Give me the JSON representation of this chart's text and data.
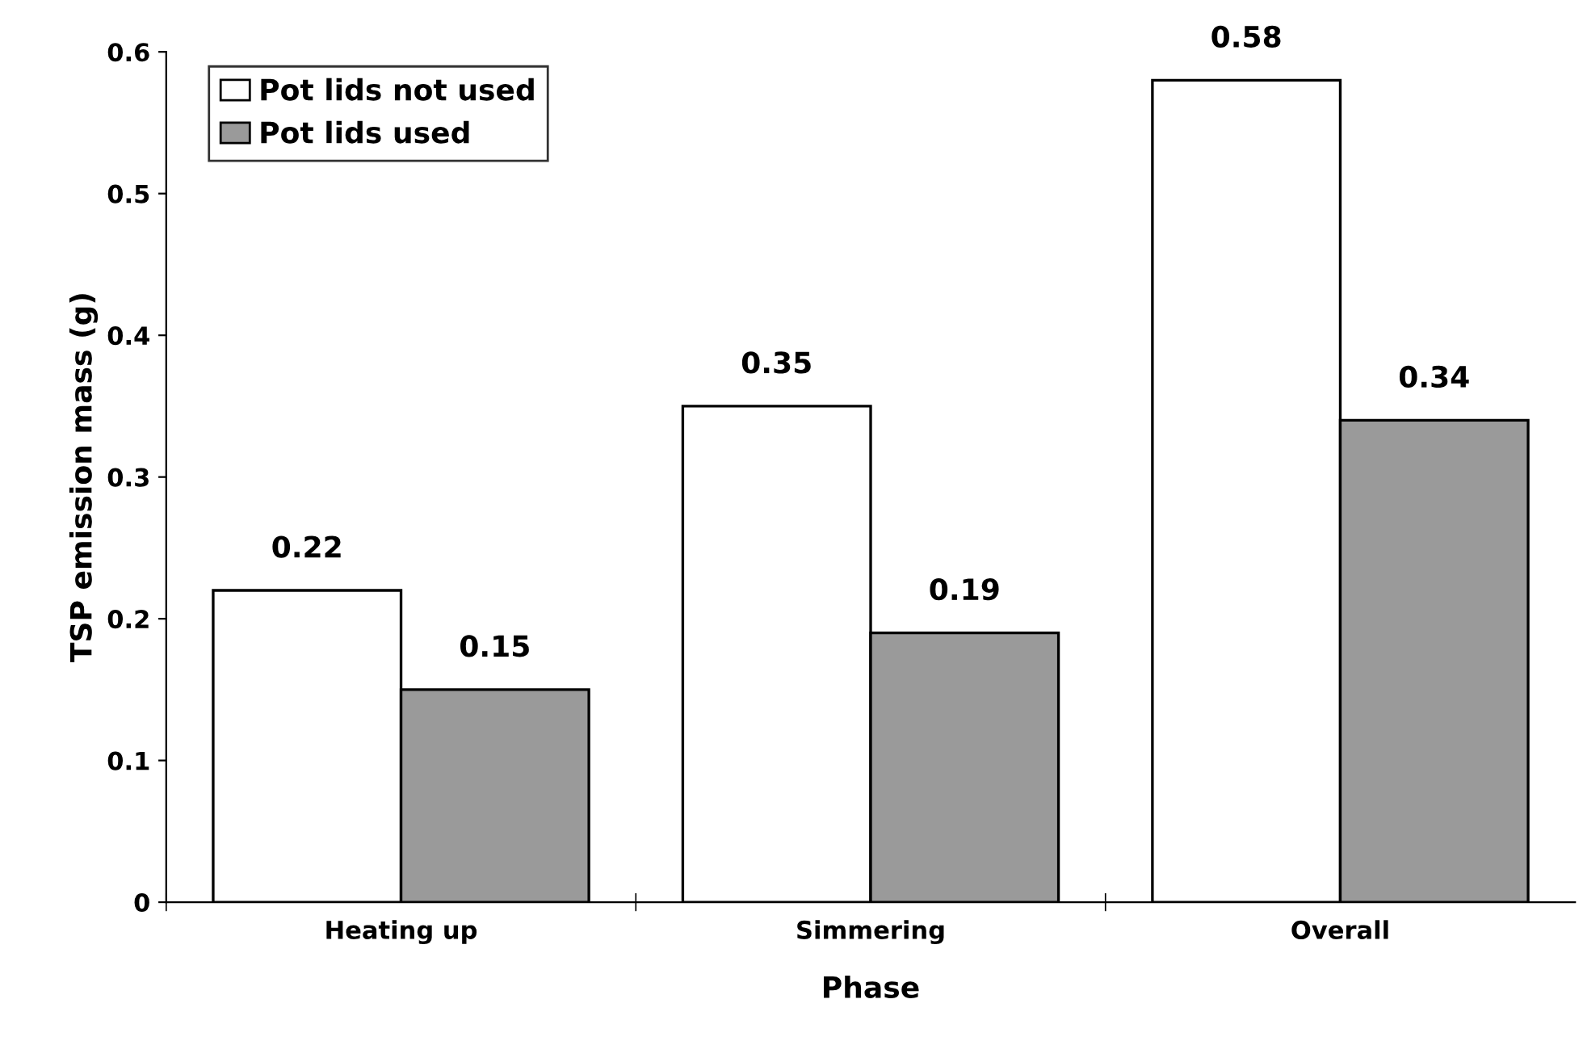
{
  "chart_data": {
    "type": "bar",
    "xlabel": "Phase",
    "ylabel": "TSP emission mass (g)",
    "categories": [
      "Heating up",
      "Simmering",
      "Overall"
    ],
    "series": [
      {
        "name": "Pot lids not used",
        "color": "#ffffff",
        "values": [
          0.22,
          0.35,
          0.58
        ]
      },
      {
        "name": "Pot lids used",
        "color": "#9a9a9a",
        "values": [
          0.15,
          0.19,
          0.34
        ]
      }
    ],
    "ylim": [
      0,
      0.6
    ],
    "yticks": [
      0,
      0.1,
      0.2,
      0.3,
      0.4,
      0.5,
      0.6
    ],
    "data_labels": true,
    "legend": "top left",
    "grid": false
  }
}
